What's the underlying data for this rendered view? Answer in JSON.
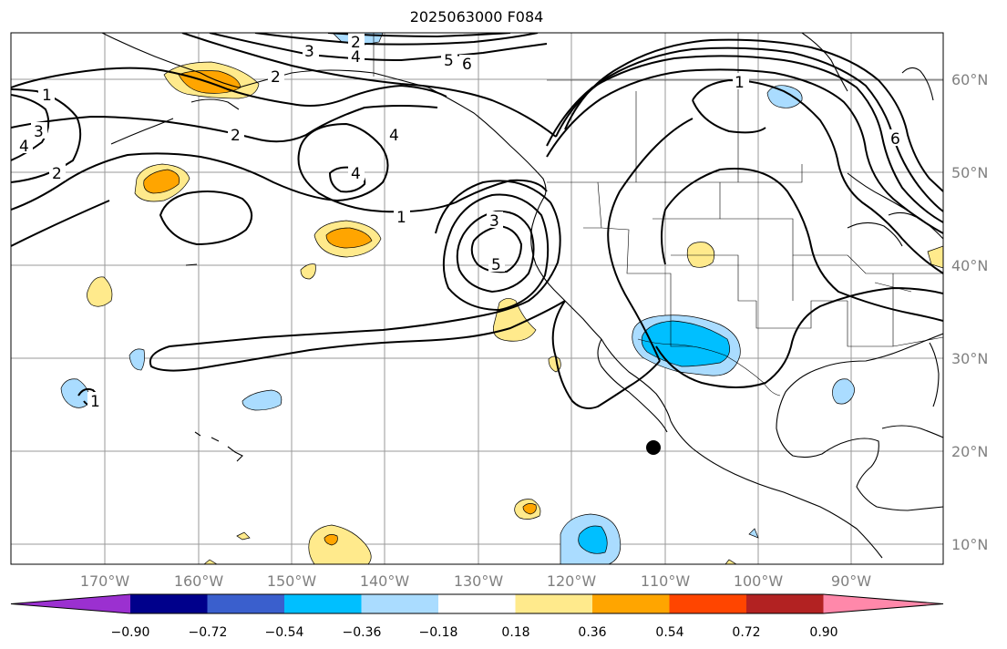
{
  "title": "2025063000 F084",
  "lon_labels": [
    "170°W",
    "160°W",
    "150°W",
    "140°W",
    "130°W",
    "120°W",
    "110°W",
    "100°W",
    "90°W"
  ],
  "lat_labels": [
    "60°N",
    "50°N",
    "40°N",
    "30°N",
    "20°N",
    "10°N"
  ],
  "colorbar": {
    "ticks": [
      "−0.90",
      "−0.72",
      "−0.54",
      "−0.36",
      "−0.18",
      "0.18",
      "0.36",
      "0.54",
      "0.72",
      "0.90"
    ],
    "colors": [
      "#9b30d0",
      "#00008b",
      "#3a5fcd",
      "#00bfff",
      "#aadcff",
      "#ffffff",
      "#ffea8c",
      "#ffa500",
      "#ff4500",
      "#b22222",
      "#ff88aa"
    ]
  },
  "contour_labels": [
    "1",
    "2",
    "3",
    "4",
    "5",
    "6",
    "2",
    "3",
    "4",
    "1",
    "2",
    "4",
    "1",
    "3",
    "5",
    "1",
    "6",
    "4",
    "2",
    "1",
    "3"
  ],
  "marker": "storm-center-dot"
}
